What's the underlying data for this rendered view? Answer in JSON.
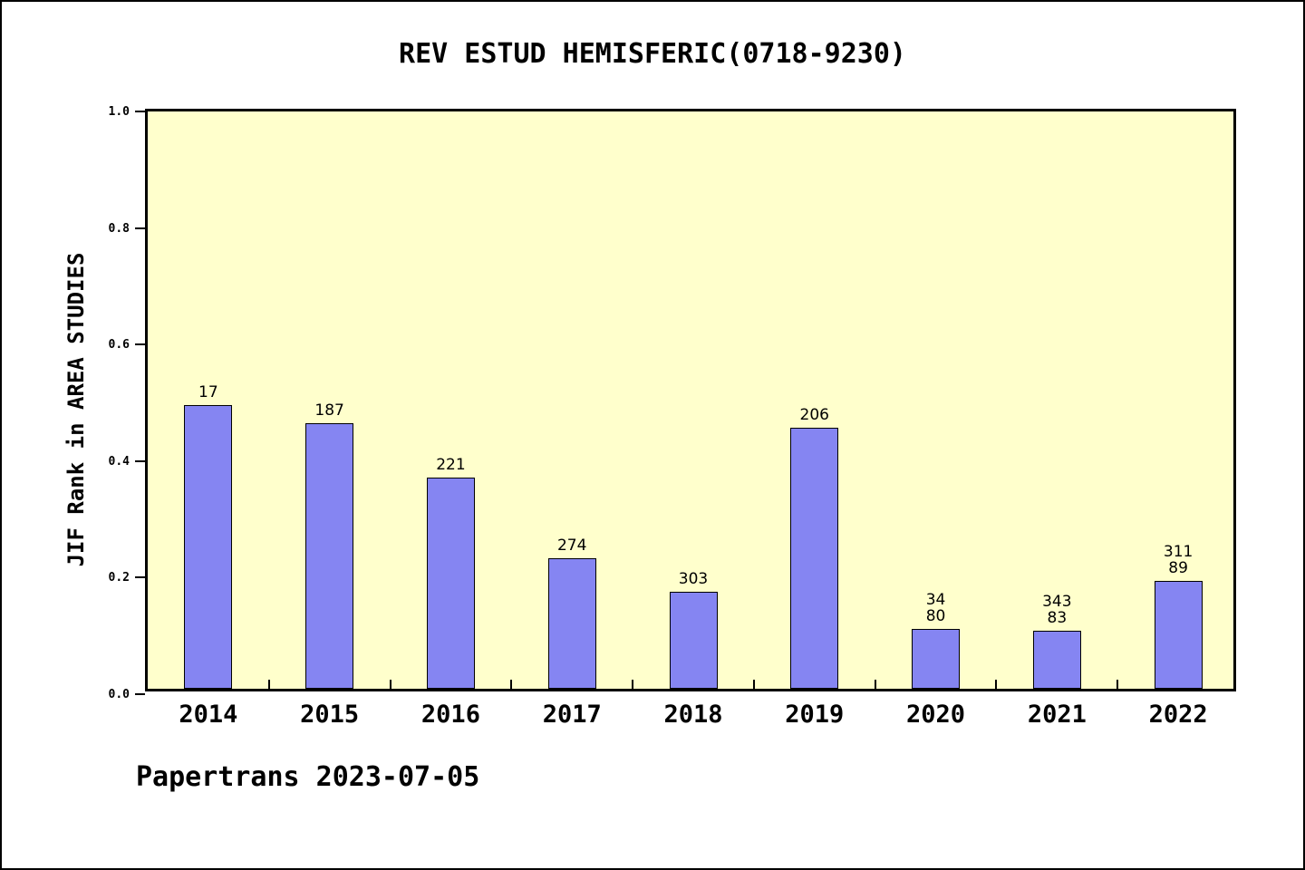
{
  "title": "REV ESTUD HEMISFERIC(0718-9230)",
  "ylabel": "JIF Rank in AREA STUDIES",
  "footer": "Papertrans 2023-07-05",
  "colors": {
    "bar_fill": "#8585F2",
    "bar_border": "#000000",
    "plot_bg": "#FFFFCC",
    "page_bg": "#FFFFFF",
    "axis": "#000000"
  },
  "chart_data": {
    "type": "bar",
    "title": "REV ESTUD HEMISFERIC(0718-9230)",
    "xlabel": "",
    "ylabel": "JIF Rank in AREA STUDIES",
    "categories": [
      "2014",
      "2015",
      "2016",
      "2017",
      "2018",
      "2019",
      "2020",
      "2021",
      "2022"
    ],
    "values": [
      0.487,
      0.456,
      0.362,
      0.224,
      0.166,
      0.448,
      0.102,
      0.1,
      0.185
    ],
    "bar_labels": [
      [
        "17"
      ],
      [
        "187"
      ],
      [
        "221"
      ],
      [
        "274"
      ],
      [
        "303"
      ],
      [
        "206"
      ],
      [
        "34",
        "80"
      ],
      [
        "343",
        "83"
      ],
      [
        "311",
        "89"
      ]
    ],
    "ylim": [
      0.0,
      1.0
    ],
    "yticks": [
      0.0,
      0.2,
      0.4,
      0.6,
      0.8,
      1.0
    ],
    "ytick_labels": [
      "0.0",
      "0.2",
      "0.4",
      "0.6",
      "0.8",
      "1.0"
    ],
    "grid": false,
    "legend": "none"
  }
}
